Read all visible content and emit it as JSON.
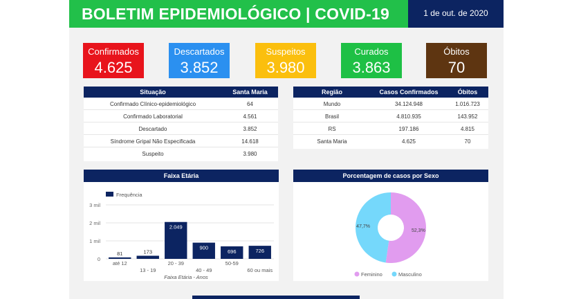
{
  "header": {
    "title": "BOLETIM EPIDEMIOLÓGICO | COVID-19",
    "date": "1 de out. de 2020"
  },
  "cards": [
    {
      "label": "Confirmados",
      "value": "4.625",
      "color": "#e8141c"
    },
    {
      "label": "Descartados",
      "value": "3.852",
      "color": "#2b90f0"
    },
    {
      "label": "Suspeitos",
      "value": "3.980",
      "color": "#fbbf0e"
    },
    {
      "label": "Curados",
      "value": "3.863",
      "color": "#1ec045"
    },
    {
      "label": "Óbitos",
      "value": "70",
      "color": "#5e3511"
    }
  ],
  "situation_table": {
    "headers": [
      "Situação",
      "Santa Maria"
    ],
    "rows": [
      [
        "Confirmado Clínico-epidemiológico",
        "64"
      ],
      [
        "Confirmado Laboratorial",
        "4.561"
      ],
      [
        "Descartado",
        "3.852"
      ],
      [
        "Síndrome Gripal Não Especificada",
        "14.618"
      ],
      [
        "Suspeito",
        "3.980"
      ]
    ]
  },
  "region_table": {
    "headers": [
      "Região",
      "Casos Confirmados",
      "Óbitos"
    ],
    "rows": [
      [
        "Mundo",
        "34.124.948",
        "1.016.723"
      ],
      [
        "Brasil",
        "4.810.935",
        "143.952"
      ],
      [
        "RS",
        "197.186",
        "4.815"
      ],
      [
        "Santa Maria",
        "4.625",
        "70"
      ]
    ]
  },
  "chart_data": [
    {
      "type": "bar",
      "title": "Faixa Etária",
      "xlabel": "Faixa Etária - Anos",
      "ylabel": "",
      "legend": "top-left",
      "series": [
        {
          "name": "Frequência",
          "values": [
            81,
            173,
            2049,
            900,
            696,
            726
          ]
        }
      ],
      "categories": [
        "até 12",
        "13 - 19",
        "20 - 39",
        "40 - 49",
        "50-59",
        "60 ou mais"
      ],
      "data_labels": [
        "81",
        "173",
        "2.049",
        "900",
        "696",
        "726"
      ],
      "y_ticks": [
        "0",
        "1 mil",
        "2 mil",
        "3 mil"
      ],
      "ylim": [
        0,
        3000
      ],
      "grid": true,
      "color": "#0c2461"
    },
    {
      "type": "pie",
      "title": "Porcentagem de casos por Sexo",
      "legend": "bottom",
      "slices": [
        {
          "name": "Feminino",
          "value": 52.3,
          "label": "52,3%",
          "color": "#e19cef"
        },
        {
          "name": "Masculino",
          "value": 47.7,
          "label": "47,7%",
          "color": "#75d8fb"
        }
      ]
    }
  ]
}
